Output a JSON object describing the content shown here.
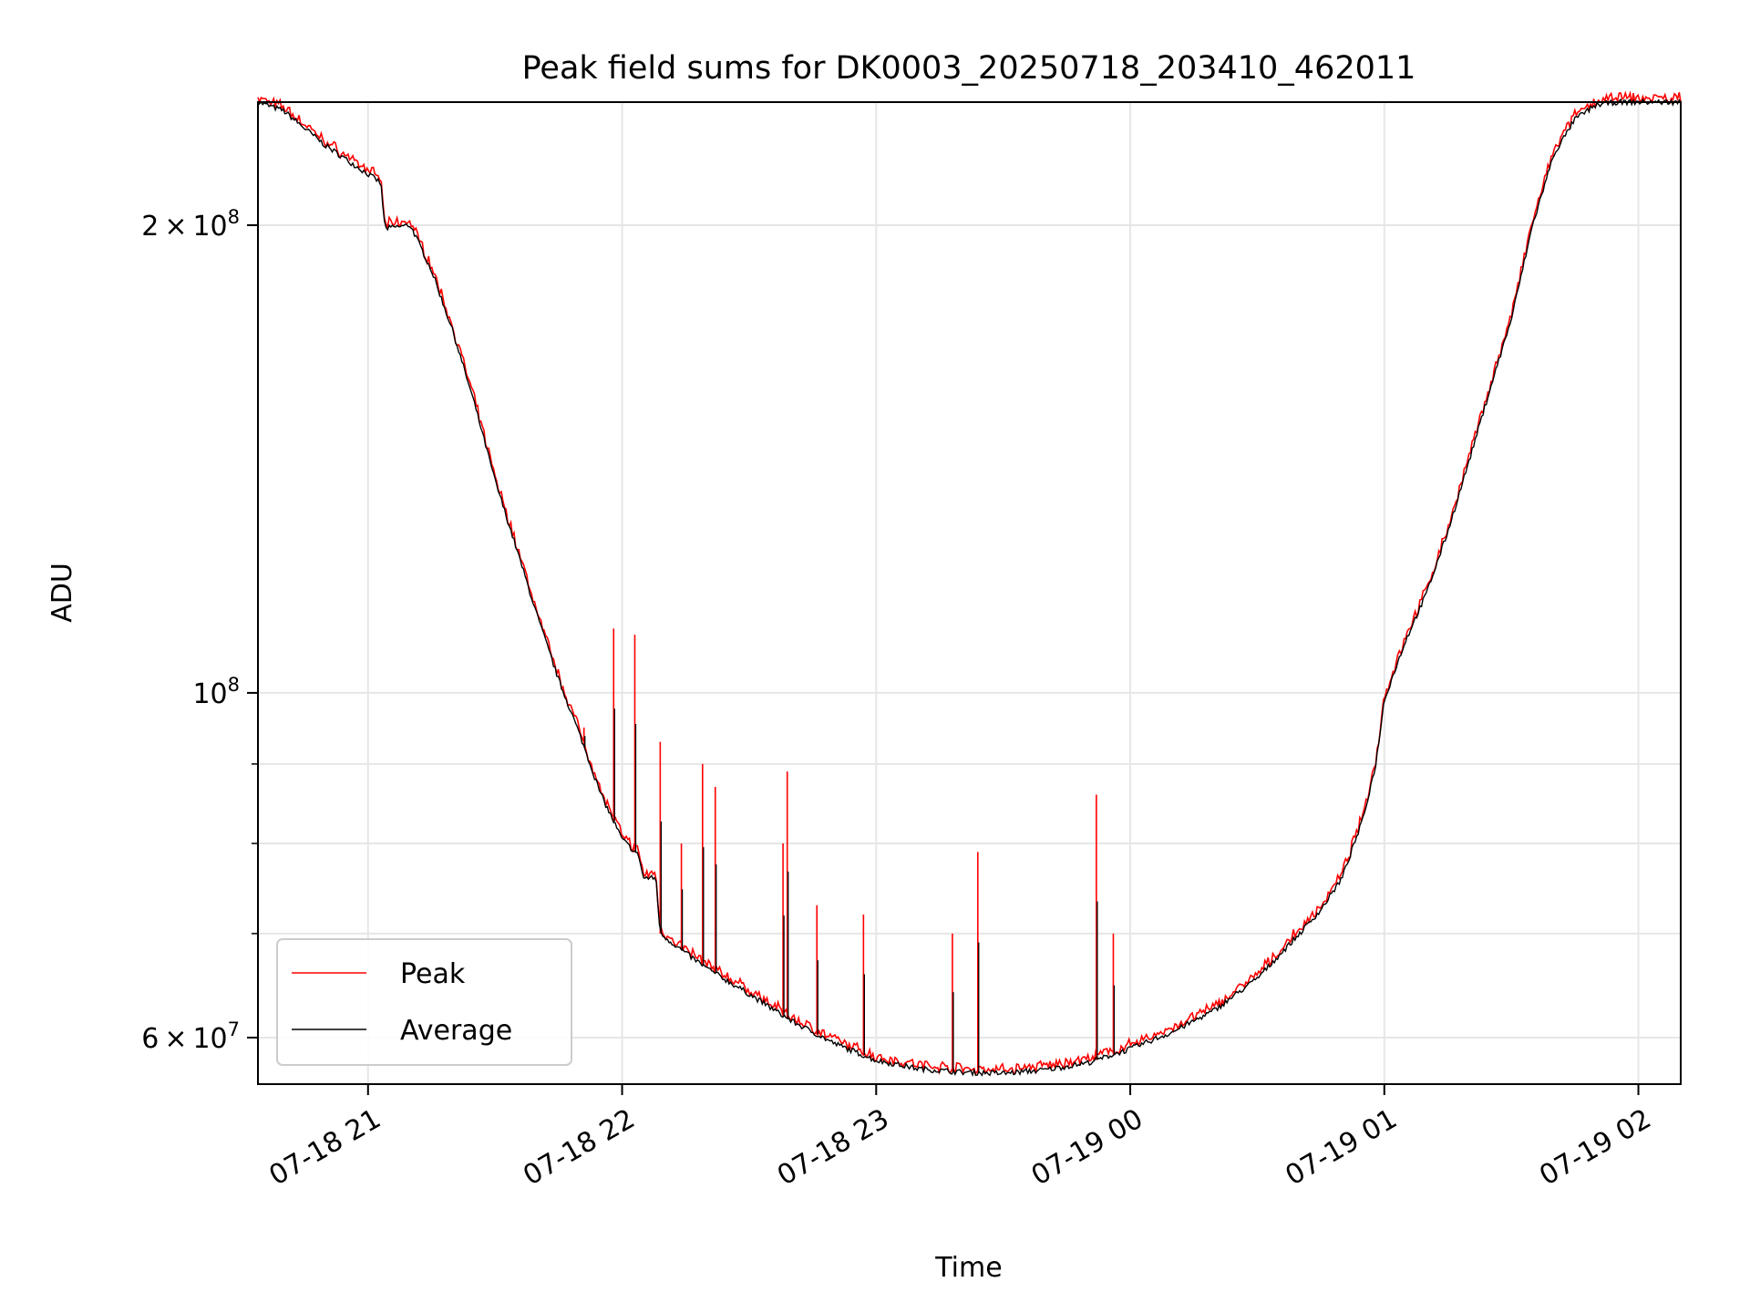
{
  "chart_data": {
    "type": "line",
    "title": "Peak field sums for DK0003_20250718_203410_462011",
    "xlabel": "Time",
    "ylabel": "ADU",
    "yscale": "log",
    "xlim": [
      "2025-07-18 20:34",
      "2025-07-19 02:10"
    ],
    "ylim": [
      56000000,
      240000000
    ],
    "xticks": [
      "2025-07-18 21:00",
      "2025-07-18 22:00",
      "2025-07-18 23:00",
      "2025-07-19 00:00",
      "2025-07-19 01:00",
      "2025-07-19 02:00"
    ],
    "xtick_labels": [
      "07-18 21",
      "07-18 22",
      "07-18 23",
      "07-19 00",
      "07-19 01",
      "07-19 02"
    ],
    "yticks_major": [
      {
        "value": 200000000,
        "mant": "2",
        "times": "×",
        "base": "10",
        "exp": "8"
      },
      {
        "value": 100000000,
        "mant": "",
        "times": "",
        "base": "10",
        "exp": "8"
      },
      {
        "value": 60000000,
        "mant": "6",
        "times": "×",
        "base": "10",
        "exp": "7"
      }
    ],
    "yticks_minor": [
      200000000,
      90000000,
      80000000,
      70000000,
      60000000
    ],
    "grid": true,
    "legend_position": "lower-left",
    "series": [
      {
        "name": "Average",
        "color": "#000000",
        "x": [
          "2025-07-18 20:34",
          "2025-07-18 20:40",
          "2025-07-18 20:50",
          "2025-07-18 21:03",
          "2025-07-18 21:04",
          "2025-07-18 21:10",
          "2025-07-18 21:15",
          "2025-07-18 21:20",
          "2025-07-18 21:25",
          "2025-07-18 21:30",
          "2025-07-18 21:35",
          "2025-07-18 21:40",
          "2025-07-18 21:45",
          "2025-07-18 21:50",
          "2025-07-18 21:55",
          "2025-07-18 22:00",
          "2025-07-18 22:04",
          "2025-07-18 22:05",
          "2025-07-18 22:08",
          "2025-07-18 22:09",
          "2025-07-18 22:15",
          "2025-07-18 22:20",
          "2025-07-18 22:30",
          "2025-07-18 22:40",
          "2025-07-18 22:50",
          "2025-07-18 23:00",
          "2025-07-18 23:10",
          "2025-07-18 23:20",
          "2025-07-18 23:30",
          "2025-07-18 23:40",
          "2025-07-18 23:50",
          "2025-07-19 00:00",
          "2025-07-19 00:10",
          "2025-07-19 00:20",
          "2025-07-19 00:30",
          "2025-07-19 00:40",
          "2025-07-19 00:45",
          "2025-07-19 00:50",
          "2025-07-19 00:55",
          "2025-07-19 00:58",
          "2025-07-19 01:00",
          "2025-07-19 01:05",
          "2025-07-19 01:10",
          "2025-07-19 01:15",
          "2025-07-19 01:20",
          "2025-07-19 01:25",
          "2025-07-19 01:30",
          "2025-07-19 01:35",
          "2025-07-19 01:40",
          "2025-07-19 01:45",
          "2025-07-19 01:50",
          "2025-07-19 01:55",
          "2025-07-19 02:00",
          "2025-07-19 02:10"
        ],
        "y": [
          240000000,
          237000000,
          225000000,
          213000000,
          199000000,
          200000000,
          187000000,
          171000000,
          154000000,
          137000000,
          124000000,
          112000000,
          102000000,
          94000000,
          86000000,
          80500000,
          78500000,
          76000000,
          76000000,
          70000000,
          68000000,
          66500000,
          64000000,
          61500000,
          59500000,
          58000000,
          57300000,
          57000000,
          56900000,
          57200000,
          57800000,
          59000000,
          60500000,
          62500000,
          65500000,
          70000000,
          72500000,
          76000000,
          83000000,
          90000000,
          99000000,
          108000000,
          116000000,
          127000000,
          141000000,
          157000000,
          174000000,
          200000000,
          222000000,
          234000000,
          239000000,
          240000000,
          240000000,
          240000000
        ]
      },
      {
        "name": "Peak",
        "color": "#ff0000",
        "spikes": [
          {
            "x": "2025-07-18 21:51",
            "y": 95000000
          },
          {
            "x": "2025-07-18 21:58",
            "y": 110000000
          },
          {
            "x": "2025-07-18 22:03",
            "y": 109000000
          },
          {
            "x": "2025-07-18 22:09",
            "y": 93000000
          },
          {
            "x": "2025-07-18 22:14",
            "y": 80000000
          },
          {
            "x": "2025-07-18 22:19",
            "y": 90000000
          },
          {
            "x": "2025-07-18 22:22",
            "y": 87000000
          },
          {
            "x": "2025-07-18 22:38",
            "y": 80000000
          },
          {
            "x": "2025-07-18 22:39",
            "y": 89000000
          },
          {
            "x": "2025-07-18 22:46",
            "y": 73000000
          },
          {
            "x": "2025-07-18 22:57",
            "y": 72000000
          },
          {
            "x": "2025-07-18 23:18",
            "y": 70000000
          },
          {
            "x": "2025-07-18 23:24",
            "y": 79000000
          },
          {
            "x": "2025-07-18 23:52",
            "y": 86000000
          },
          {
            "x": "2025-07-18 23:56",
            "y": 70000000
          }
        ]
      }
    ]
  }
}
